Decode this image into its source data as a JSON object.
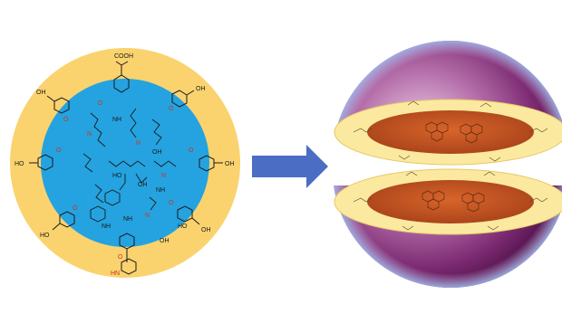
{
  "figure": {
    "colors": {
      "shell": "#fad36e",
      "core": "#24a3e0",
      "arrow": "#4b6ec4",
      "sphere_dark": "#6d1f64",
      "sphere_mid": "#a65d9c",
      "sphere_light": "#e9c9e6",
      "disc_shell": "#fbe9a0",
      "disc_core": "#c8521e",
      "atom_red": "#d0321e"
    },
    "left_particle": {
      "labels": {
        "cooh_top": "COOH",
        "cooh_top_right": "OH",
        "cooh_left_upper": "OH",
        "cooh_left_mid": "HO",
        "cooh_left_low": "HO",
        "cooh_right": "OH",
        "cooh_right_low": "OH",
        "cooh_bottom_left": "HO",
        "cooh_bottom_right": "OH",
        "center_oh_1": "OH",
        "center_oh_2": "HO",
        "center_oh_3": "OH",
        "amine_1": "NH",
        "amine_2": "NH",
        "amine_3": "NH",
        "amine_4": "NH",
        "amine_bottom": "HN"
      }
    },
    "transition_arrow": {
      "icon": "arrow-right-icon"
    },
    "right_particle": {
      "icon": "split-sphere-icon"
    }
  }
}
